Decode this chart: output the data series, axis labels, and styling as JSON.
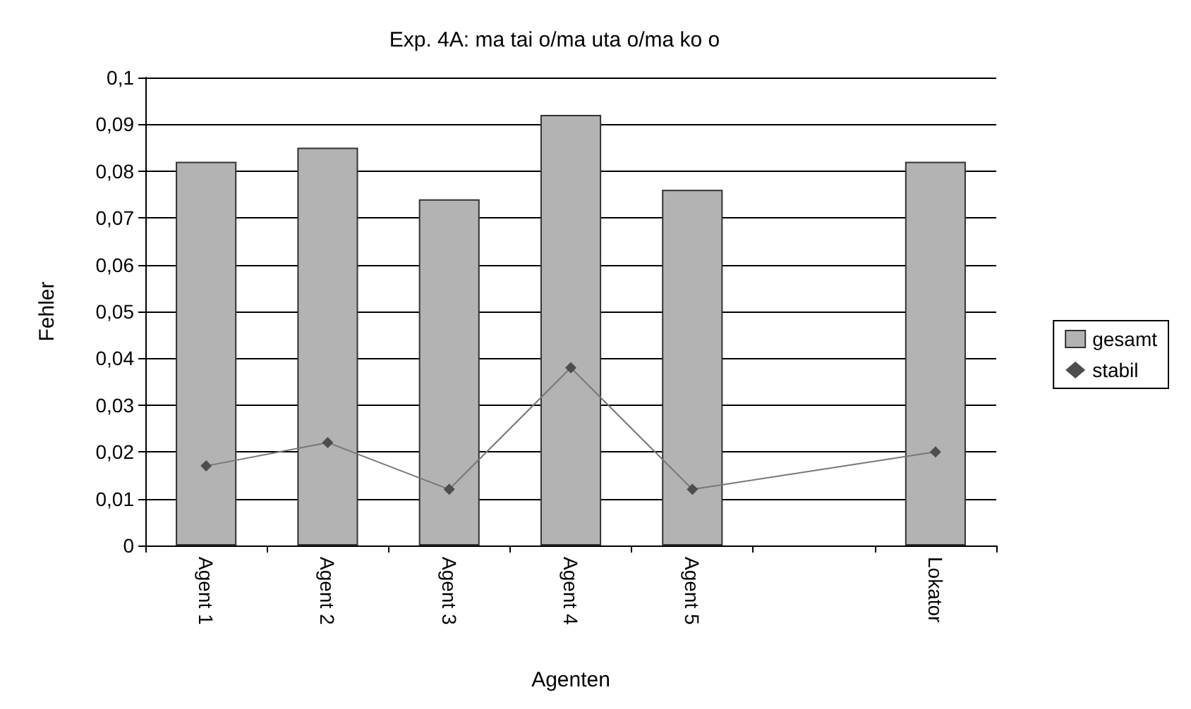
{
  "chart_data": {
    "type": "bar",
    "title": "Exp. 4A: ma tai o/ma uta o/ma ko o",
    "xlabel": "Agenten",
    "ylabel": "Fehler",
    "categories": [
      "Agent 1",
      "Agent 2",
      "Agent 3",
      "Agent 4",
      "Agent 5",
      null,
      "Lokator"
    ],
    "series": [
      {
        "name": "gesamt",
        "color": "#b3b3b3",
        "values": [
          0.082,
          0.085,
          0.074,
          0.092,
          0.076,
          null,
          0.082
        ]
      },
      {
        "name": "stabil",
        "type": "line",
        "color": "#4d4d4d",
        "marker": "diamond",
        "values": [
          0.017,
          0.022,
          0.012,
          0.038,
          0.012,
          null,
          0.02
        ]
      }
    ],
    "ylim": [
      0,
      0.1
    ],
    "yticks": [
      {
        "value": 0,
        "label": "0"
      },
      {
        "value": 0.01,
        "label": "0,01"
      },
      {
        "value": 0.02,
        "label": "0,02"
      },
      {
        "value": 0.03,
        "label": "0,03"
      },
      {
        "value": 0.04,
        "label": "0,04"
      },
      {
        "value": 0.05,
        "label": "0,05"
      },
      {
        "value": 0.06,
        "label": "0,06"
      },
      {
        "value": 0.07,
        "label": "0,07"
      },
      {
        "value": 0.08,
        "label": "0,08"
      },
      {
        "value": 0.09,
        "label": "0,09"
      },
      {
        "value": 0.1,
        "label": "0,1"
      }
    ],
    "grid": "y",
    "legend": "right"
  }
}
